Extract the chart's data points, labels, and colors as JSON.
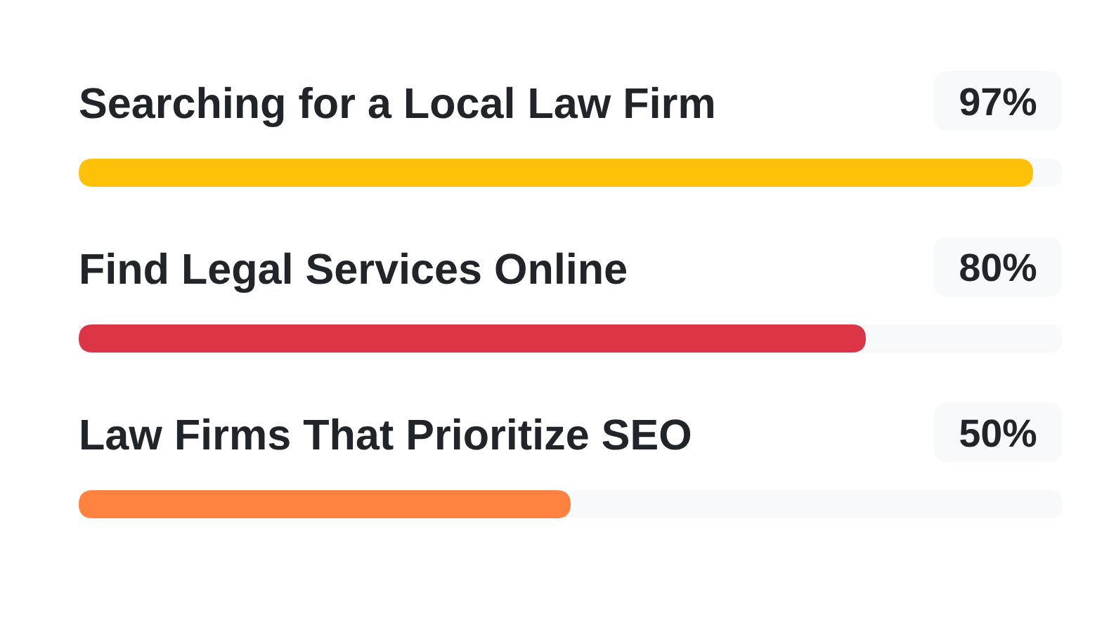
{
  "chart_data": {
    "type": "bar",
    "orientation": "horizontal",
    "categories": [
      "Searching for a Local Law Firm",
      "Find Legal Services Online",
      "Law Firms That Prioritize SEO"
    ],
    "values": [
      97,
      80,
      50
    ],
    "colors": [
      "#ffc107",
      "#dc3545",
      "#ff8240"
    ],
    "value_labels": [
      "97%",
      "80%",
      "50%"
    ],
    "xlim": [
      0,
      100
    ],
    "tick_labels": "y"
  }
}
